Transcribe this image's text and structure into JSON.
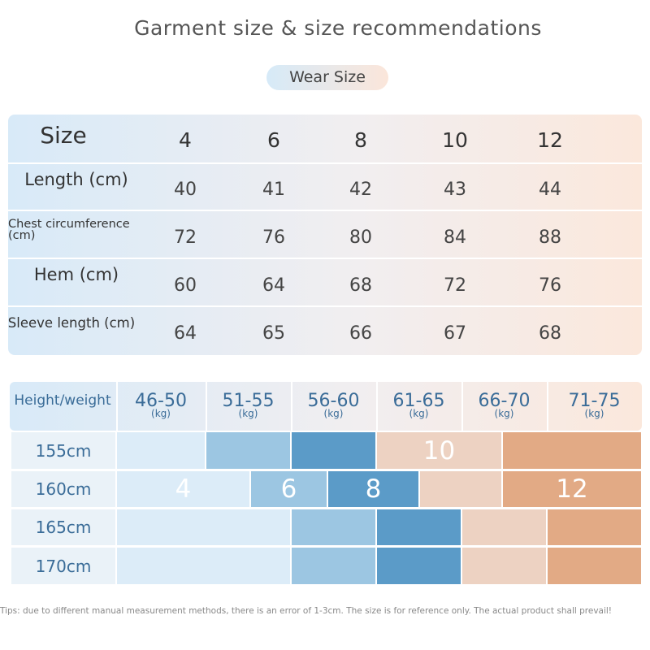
{
  "title": "Garment size & size recommendations",
  "badge": "Wear Size",
  "size_table": {
    "header": [
      "Size",
      "4",
      "6",
      "8",
      "10",
      "12"
    ],
    "rows": [
      [
        "Length (cm)",
        "40",
        "41",
        "42",
        "43",
        "44"
      ],
      [
        "Chest circumference (cm)",
        "72",
        "76",
        "80",
        "84",
        "88"
      ],
      [
        "Hem (cm)",
        "60",
        "64",
        "68",
        "72",
        "76"
      ],
      [
        "Sleeve length (cm)",
        "64",
        "65",
        "66",
        "67",
        "68"
      ]
    ]
  },
  "recommend_table": {
    "corner": "Height/weight",
    "weights": [
      {
        "range": "46-50",
        "unit": "(kg)"
      },
      {
        "range": "51-55",
        "unit": "(kg)"
      },
      {
        "range": "56-60",
        "unit": "(kg)"
      },
      {
        "range": "61-65",
        "unit": "(kg)"
      },
      {
        "range": "66-70",
        "unit": "(kg)"
      },
      {
        "range": "71-75",
        "unit": "(kg)"
      }
    ],
    "heights": [
      "155cm",
      "160cm",
      "165cm",
      "170cm"
    ],
    "size_labels": [
      "10",
      "4",
      "6",
      "8",
      "12"
    ]
  },
  "tips": "Tips: due to different manual measurement methods, there is an error of 1-3cm. The size is for reference only. The actual product shall prevail!"
}
